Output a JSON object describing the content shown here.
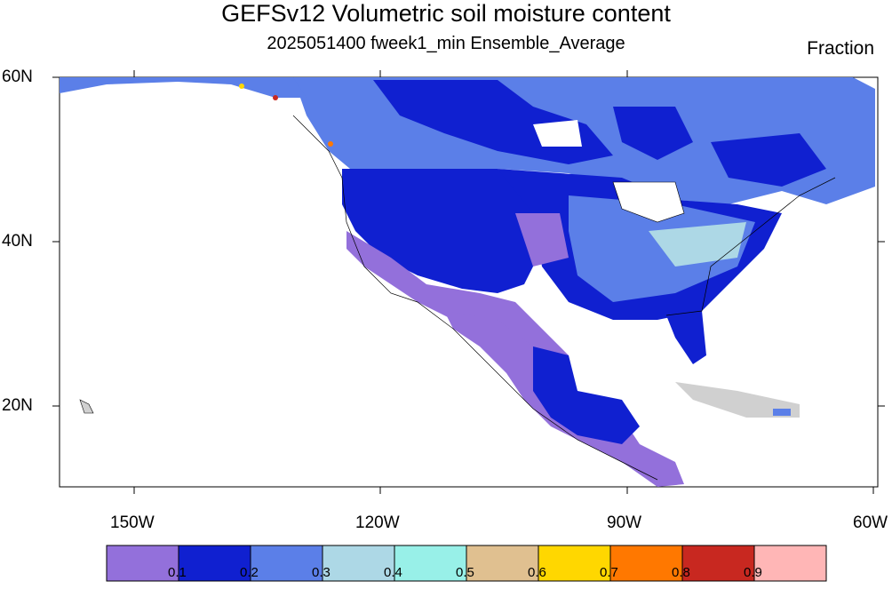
{
  "title": "GEFSv12 Volumetric soil moisture content",
  "subtitle": "2025051400 fweek1_min Ensemble_Average",
  "units": "Fraction",
  "lat_labels": [
    "60N",
    "40N",
    "20N"
  ],
  "lon_labels": [
    "150W",
    "120W",
    "90W",
    "60W"
  ],
  "colorbar": {
    "labels": [
      "0.1",
      "0.2",
      "0.3",
      "0.4",
      "0.5",
      "0.6",
      "0.7",
      "0.8",
      "0.9"
    ],
    "colors": [
      "#9370DB",
      "#1020D0",
      "#5B7FE8",
      "#ADD8E6",
      "#98F0E8",
      "#E0C090",
      "#FFD700",
      "#FF7800",
      "#C82820",
      "#FFB6B6"
    ]
  },
  "palette": {
    "missing": "#D0D0D0",
    "land_outline": "#000000"
  }
}
